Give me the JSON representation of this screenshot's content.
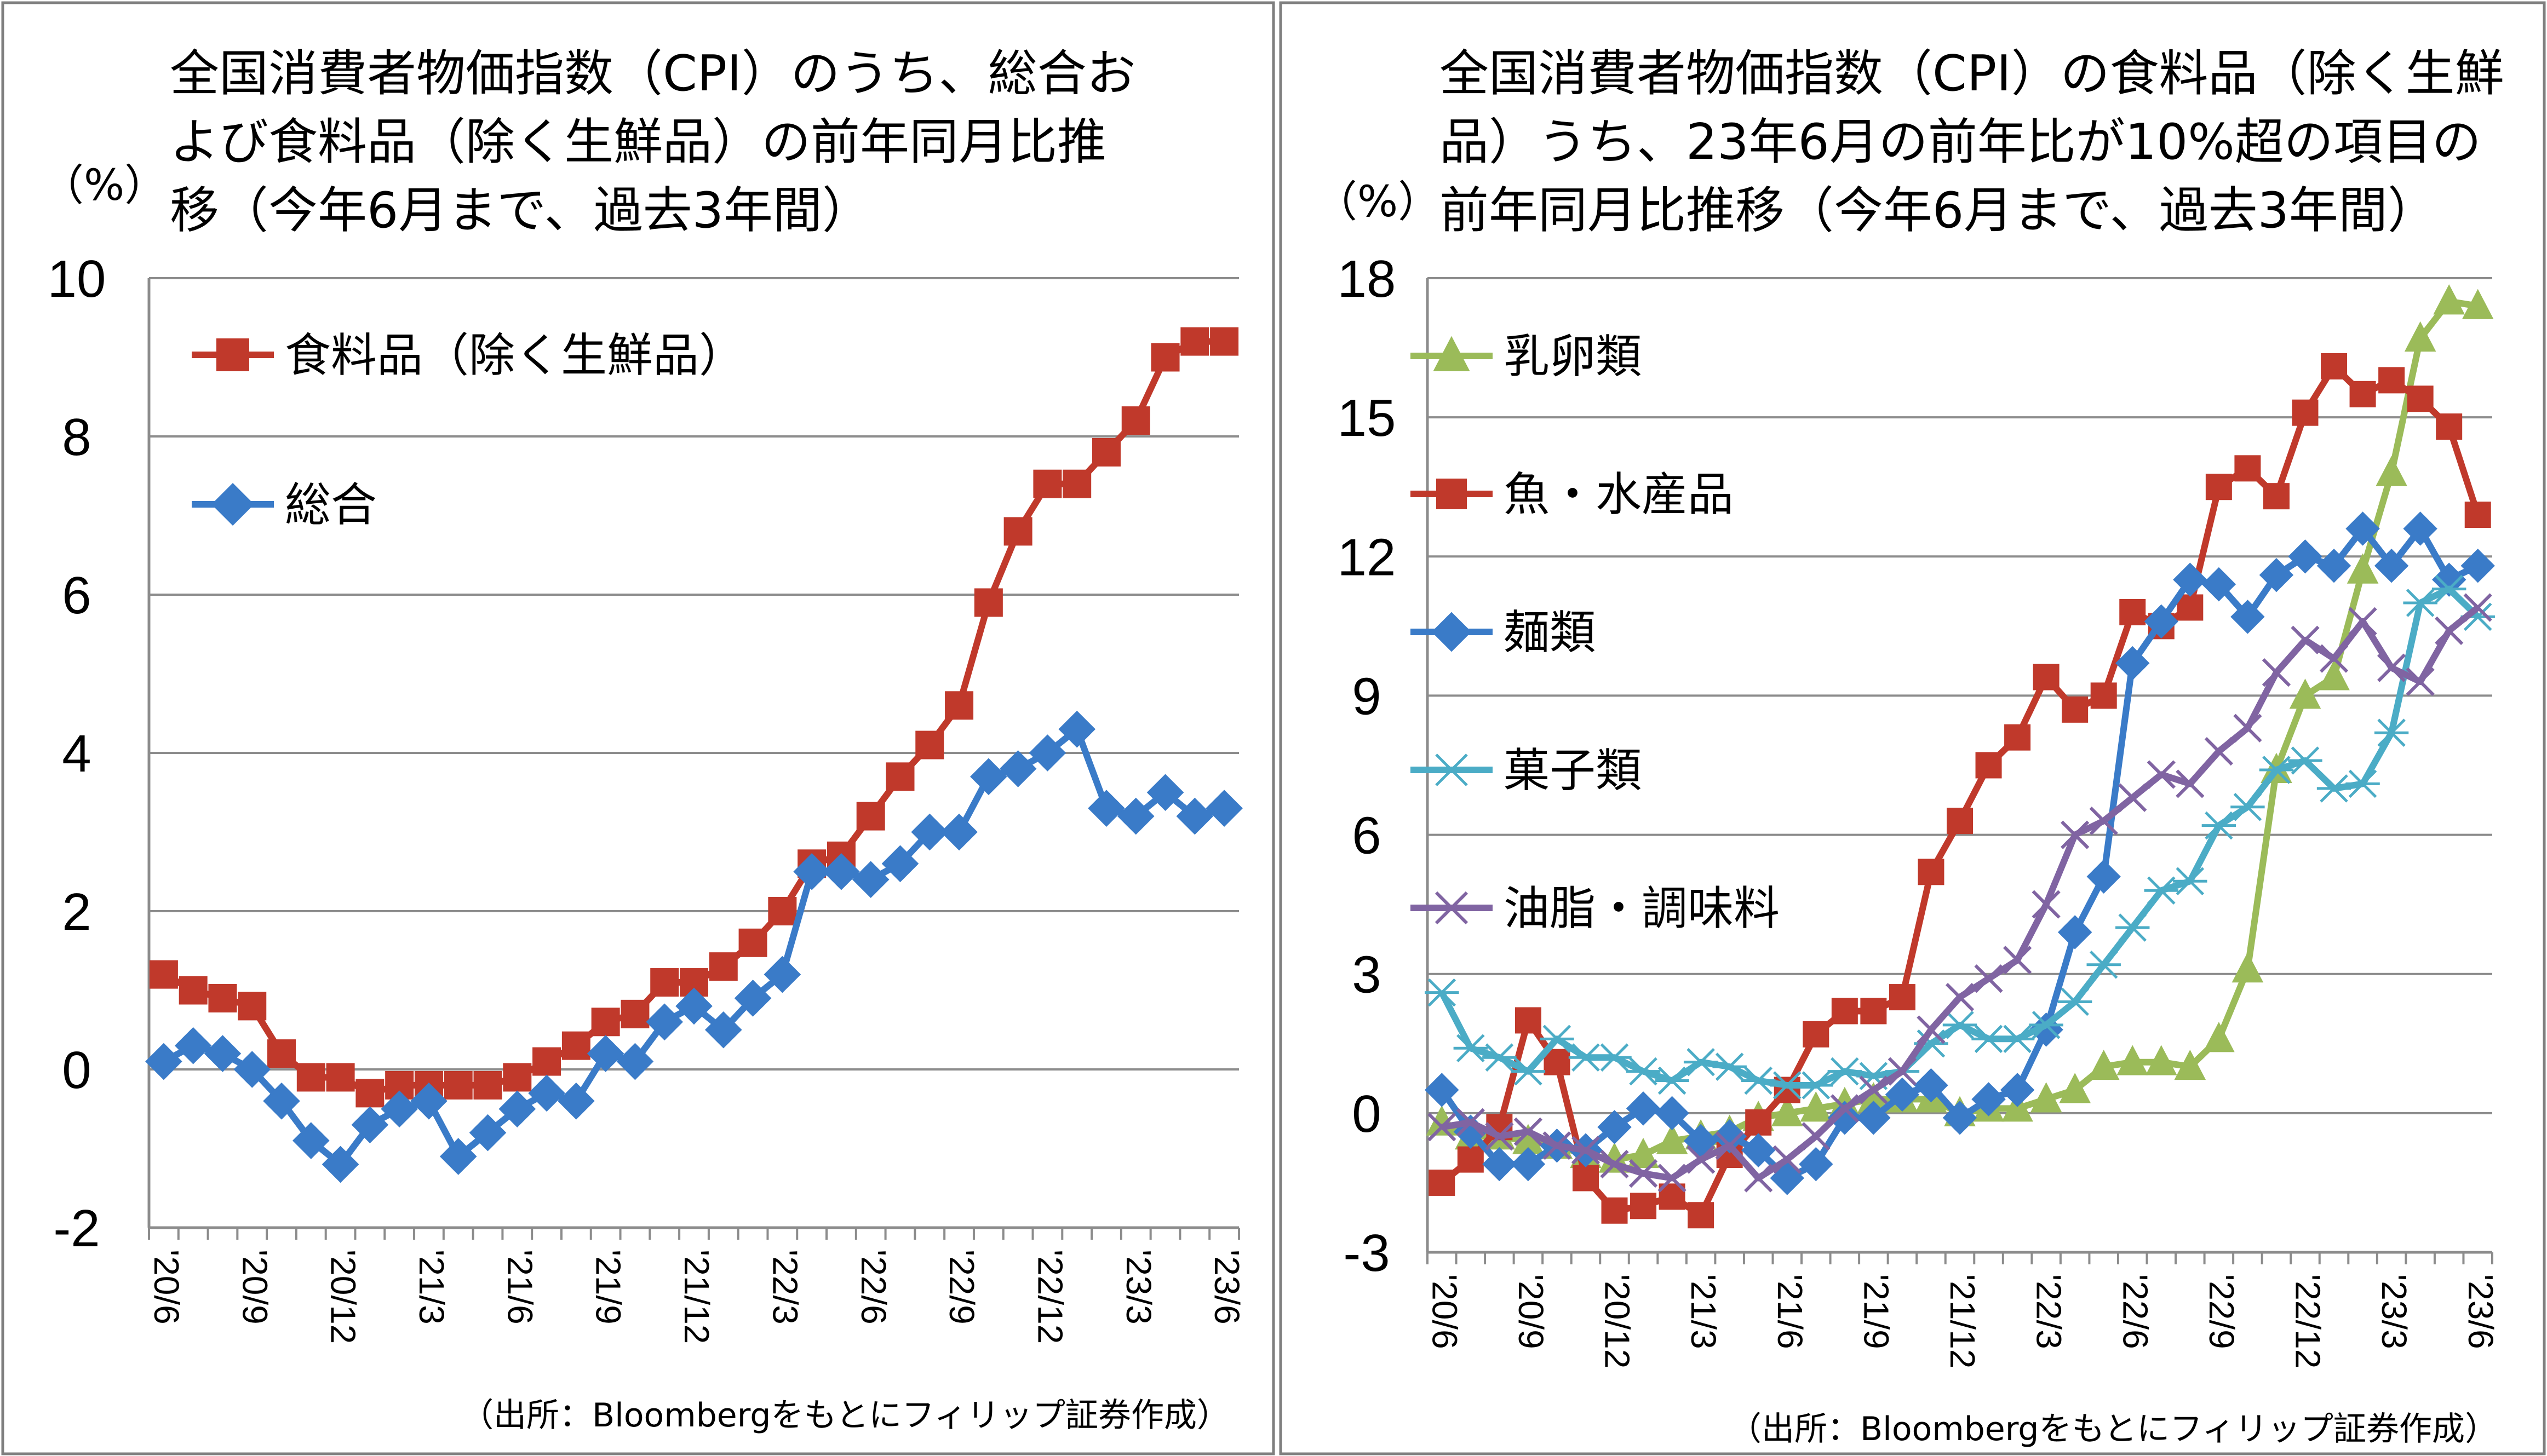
{
  "source_note": "（出所：Bloombergをもとにフィリップ証券作成）",
  "chart_data": [
    {
      "type": "line",
      "title_lines": [
        "全国消費者物価指数（CPI）のうち、総合お",
        "よび食料品（除く生鮮品）の前年同月比推",
        "移（今年6月まで、過去3年間）"
      ],
      "ylabel": "（%）",
      "ylim": [
        -2,
        10
      ],
      "yticks": [
        "-2",
        "0",
        "2",
        "4",
        "6",
        "8",
        "10"
      ],
      "ytick_values": [
        -2,
        0,
        2,
        4,
        6,
        8,
        10
      ],
      "xtick_labels": [
        "'20/6",
        "'20/9",
        "'20/12",
        "'21/3",
        "'21/6",
        "'21/9",
        "'21/12",
        "'22/3",
        "'22/6",
        "'22/9",
        "'22/12",
        "'23/3",
        "'23/6"
      ],
      "grid": true,
      "legend": "top-left",
      "series": [
        {
          "name": "食料品（除く生鮮品）",
          "color": "#c0392b",
          "marker": "square",
          "values": [
            1.2,
            1.0,
            0.9,
            0.8,
            0.2,
            -0.1,
            -0.1,
            -0.3,
            -0.2,
            -0.2,
            -0.2,
            -0.2,
            -0.1,
            0.1,
            0.3,
            0.6,
            0.7,
            1.1,
            1.1,
            1.3,
            1.6,
            2.0,
            2.6,
            2.7,
            3.2,
            3.7,
            4.1,
            4.6,
            5.9,
            6.8,
            7.4,
            7.4,
            7.8,
            8.2,
            9.0,
            9.2,
            9.2
          ]
        },
        {
          "name": "総合",
          "color": "#3a7bc8",
          "marker": "diamond",
          "values": [
            0.1,
            0.3,
            0.2,
            0.0,
            -0.4,
            -0.9,
            -1.2,
            -0.7,
            -0.5,
            -0.4,
            -1.1,
            -0.8,
            -0.5,
            -0.3,
            -0.4,
            0.2,
            0.1,
            0.6,
            0.8,
            0.5,
            0.9,
            1.2,
            2.5,
            2.5,
            2.4,
            2.6,
            3.0,
            3.0,
            3.7,
            3.8,
            4.0,
            4.3,
            3.3,
            3.2,
            3.5,
            3.2,
            3.3
          ]
        }
      ]
    },
    {
      "type": "line",
      "title_lines": [
        "全国消費者物価指数（CPI）の食料品（除く生鮮",
        "品）うち、23年6月の前年比が10%超の項目の",
        "前年同月比推移（今年6月まで、過去3年間）"
      ],
      "ylabel": "（%）",
      "ylim": [
        -3,
        18
      ],
      "yticks": [
        "-3",
        "0",
        "3",
        "6",
        "9",
        "12",
        "15",
        "18"
      ],
      "ytick_values": [
        -3,
        0,
        3,
        6,
        9,
        12,
        15,
        18
      ],
      "xtick_labels": [
        "'20/6",
        "'20/9",
        "'20/12",
        "'21/3",
        "'21/6",
        "'21/9",
        "'21/12",
        "'22/3",
        "'22/6",
        "'22/9",
        "'22/12",
        "'23/3",
        "'23/6"
      ],
      "grid": true,
      "legend": "top-left",
      "series": [
        {
          "name": "乳卵類",
          "color": "#9bbb59",
          "marker": "triangle",
          "values": [
            -0.2,
            -0.5,
            -0.5,
            -0.6,
            -0.7,
            -0.9,
            -1.0,
            -0.9,
            -0.6,
            -0.5,
            -0.4,
            -0.1,
            0.0,
            0.1,
            0.2,
            0.3,
            0.3,
            0.3,
            0.0,
            0.1,
            0.1,
            0.3,
            0.5,
            1.0,
            1.1,
            1.1,
            1.0,
            1.6,
            3.1,
            7.4,
            9.0,
            9.4,
            11.7,
            13.8,
            16.7,
            17.5,
            17.4
          ]
        },
        {
          "name": "魚・水産品",
          "color": "#c0392b",
          "marker": "square",
          "values": [
            -1.5,
            -1.0,
            -0.3,
            2.0,
            1.1,
            -1.4,
            -2.1,
            -2.0,
            -1.8,
            -2.2,
            -0.9,
            -0.2,
            0.5,
            1.7,
            2.2,
            2.2,
            2.5,
            5.2,
            6.3,
            7.5,
            8.1,
            9.4,
            8.7,
            9.0,
            10.8,
            10.5,
            10.9,
            13.5,
            13.9,
            13.3,
            15.1,
            16.1,
            15.5,
            15.8,
            15.4,
            14.8,
            12.9
          ]
        },
        {
          "name": "麺類",
          "color": "#3a7bc8",
          "marker": "diamond",
          "values": [
            0.5,
            -0.4,
            -1.1,
            -1.1,
            -0.7,
            -0.8,
            -0.3,
            0.1,
            0.0,
            -0.6,
            -0.5,
            -0.8,
            -1.4,
            -1.1,
            -0.1,
            -0.1,
            0.4,
            0.6,
            -0.1,
            0.3,
            0.5,
            1.8,
            3.9,
            5.1,
            9.7,
            10.6,
            11.5,
            11.4,
            10.7,
            11.6,
            12.0,
            11.8,
            12.6,
            11.8,
            12.6,
            11.5,
            11.8
          ]
        },
        {
          "name": "菓子類",
          "color": "#4bacc6",
          "marker": "asterisk",
          "values": [
            2.6,
            1.4,
            1.2,
            0.9,
            1.6,
            1.2,
            1.2,
            0.9,
            0.7,
            1.1,
            1.0,
            0.7,
            0.6,
            0.6,
            0.9,
            0.8,
            0.9,
            1.5,
            1.9,
            1.6,
            1.6,
            1.9,
            2.4,
            3.2,
            4.0,
            4.8,
            5.0,
            6.2,
            6.6,
            7.4,
            7.6,
            7.0,
            7.1,
            8.2,
            11.0,
            11.3,
            10.7
          ]
        },
        {
          "name": "油脂・調味料",
          "color": "#8064a2",
          "marker": "x",
          "values": [
            -0.3,
            -0.2,
            -0.5,
            -0.4,
            -0.7,
            -0.8,
            -1.1,
            -1.3,
            -1.4,
            -1.0,
            -0.7,
            -1.4,
            -1.0,
            -0.5,
            0.1,
            0.5,
            0.9,
            1.8,
            2.5,
            2.9,
            3.3,
            4.5,
            6.0,
            6.3,
            6.8,
            7.3,
            7.1,
            7.8,
            8.3,
            9.5,
            10.2,
            9.8,
            10.6,
            9.6,
            9.3,
            10.4,
            10.9
          ]
        }
      ]
    }
  ]
}
